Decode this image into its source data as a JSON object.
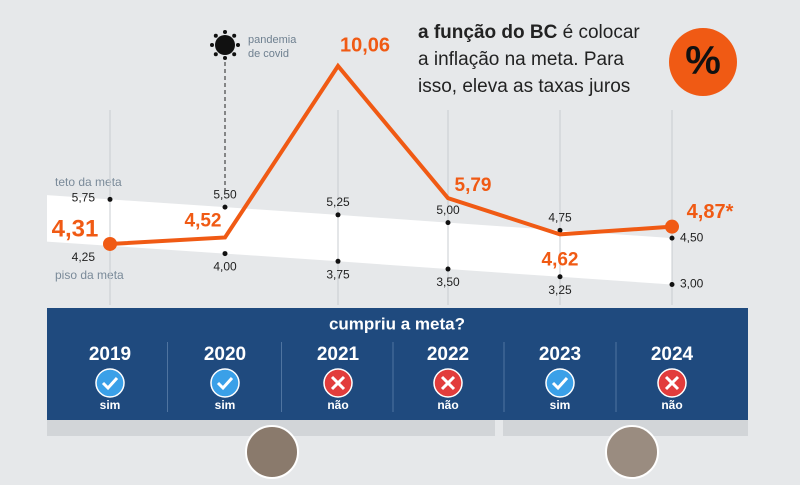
{
  "chart_data": {
    "type": "line",
    "categories": [
      "2019",
      "2020",
      "2021",
      "2022",
      "2023",
      "2024"
    ],
    "values": [
      4.31,
      4.52,
      10.06,
      5.79,
      4.62,
      4.87
    ],
    "value_labels": [
      "4,31",
      "4,52",
      "10,06",
      "5,79",
      "4,62",
      "4,87*"
    ],
    "color": "#f05a14",
    "ylim": [
      2.5,
      10.9
    ],
    "band": {
      "upper": {
        "label": "teto da meta",
        "values": [
          5.75,
          5.5,
          5.25,
          5.0,
          4.75,
          4.5
        ],
        "value_labels": [
          "5,75",
          "5,50",
          "5,25",
          "5,00",
          "4,75",
          "4,50"
        ]
      },
      "lower": {
        "label": "piso da meta",
        "values": [
          4.25,
          4.0,
          3.75,
          3.5,
          3.25,
          3.0
        ],
        "value_labels": [
          "4,25",
          "4,00",
          "3,75",
          "3,50",
          "3,25",
          "3,00"
        ]
      }
    },
    "annotation": {
      "lines": [
        "pandemia",
        "de covid"
      ]
    },
    "note": {
      "bold": "a função do BC",
      "lines": [
        " é colocar",
        "a inflação na meta. Para",
        "isso, eleva as taxas juros"
      ],
      "badge": "%"
    },
    "table": {
      "title": "cumpriu a meta?",
      "met": [
        true,
        true,
        false,
        false,
        true,
        false
      ],
      "labels": [
        "sim",
        "sim",
        "não",
        "não",
        "sim",
        "não"
      ]
    }
  }
}
